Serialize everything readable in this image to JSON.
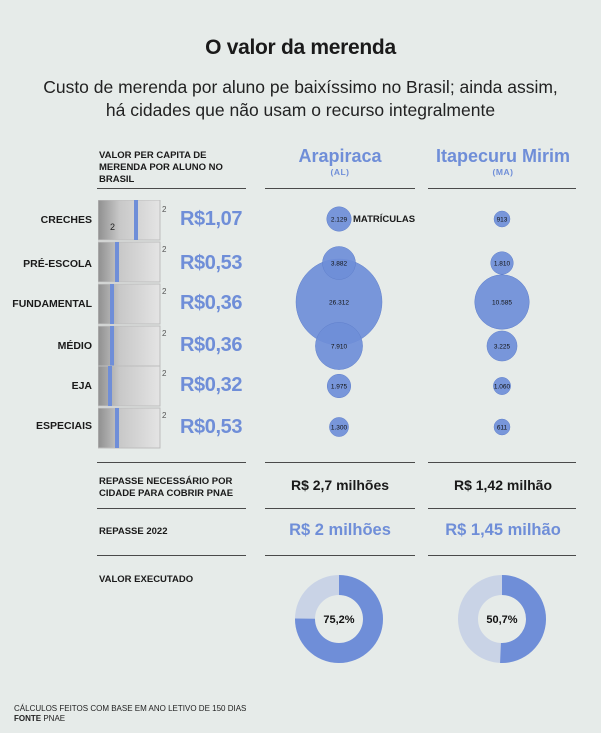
{
  "title": "O valor da merenda",
  "subtitle": "Custo de merenda por aluno pe baixíssimo no Brasil; ainda assim, há cidades que não usam o recurso integralmente",
  "header": {
    "per_capita_label": "VALOR PER CAPITA DE MERENDA POR ALUNO NO BRASIL",
    "matriculas_label": "MATRÍCULAS"
  },
  "cities": [
    {
      "name": "Arapiraca",
      "state": "(AL)"
    },
    {
      "name": "Itapecuru Mirim",
      "state": "(MA)"
    }
  ],
  "categories": [
    {
      "label": "CRECHES",
      "price": "R$1,07"
    },
    {
      "label": "PRÉ-ESCOLA",
      "price": "R$0,53"
    },
    {
      "label": "FUNDAMENTAL",
      "price": "R$0,36"
    },
    {
      "label": "MÉDIO",
      "price": "R$0,36"
    },
    {
      "label": "EJA",
      "price": "R$0,32"
    },
    {
      "label": "ESPECIAIS",
      "price": "R$0,53"
    }
  ],
  "repasse_necessario": {
    "label": "REPASSE NECESSÁRIO POR CIDADE PARA COBRIR PNAE",
    "values": [
      "R$ 2,7 milhões",
      "R$ 1,42 milhão"
    ]
  },
  "repasse_2022": {
    "label": "REPASSE 2022",
    "values": [
      "R$ 2 milhões",
      "R$ 1,45 milhão"
    ]
  },
  "valor_executado": {
    "label": "VALOR EXECUTADO"
  },
  "footer": {
    "note": "CÁLCULOS FEITOS COM BASE EM ANO LETIVO DE 150 DIAS",
    "source_label": "FONTE",
    "source": "PNAE"
  },
  "colors": {
    "accent": "#6f8ed8",
    "bubble": "#6f8ed8",
    "donut_track": "#c9d3e6",
    "background": "#e6ebe9"
  },
  "chart_data": [
    {
      "type": "scatter",
      "title": "",
      "categories": [
        "CRECHES",
        "PRÉ-ESCOLA",
        "FUNDAMENTAL",
        "MÉDIO",
        "EJA",
        "ESPECIAIS"
      ],
      "series": [
        {
          "name": "Arapiraca",
          "values": [
            2129,
            3882,
            26312,
            7910,
            1975,
            1300
          ],
          "labels": [
            "2.129",
            "3.882",
            "26.312",
            "7.910",
            "1.975",
            "1.300"
          ]
        },
        {
          "name": "Itapecuru Mirim",
          "values": [
            913,
            1810,
            10585,
            3225,
            1060,
            611
          ],
          "labels": [
            "913",
            "1.810",
            "10.585",
            "3.225",
            "1.060",
            "611"
          ]
        }
      ]
    },
    {
      "type": "pie",
      "series": [
        {
          "name": "Arapiraca",
          "value": 75.2,
          "label": "75,2%"
        },
        {
          "name": "Itapecuru Mirim",
          "value": 50.7,
          "label": "50,7%"
        }
      ]
    }
  ]
}
